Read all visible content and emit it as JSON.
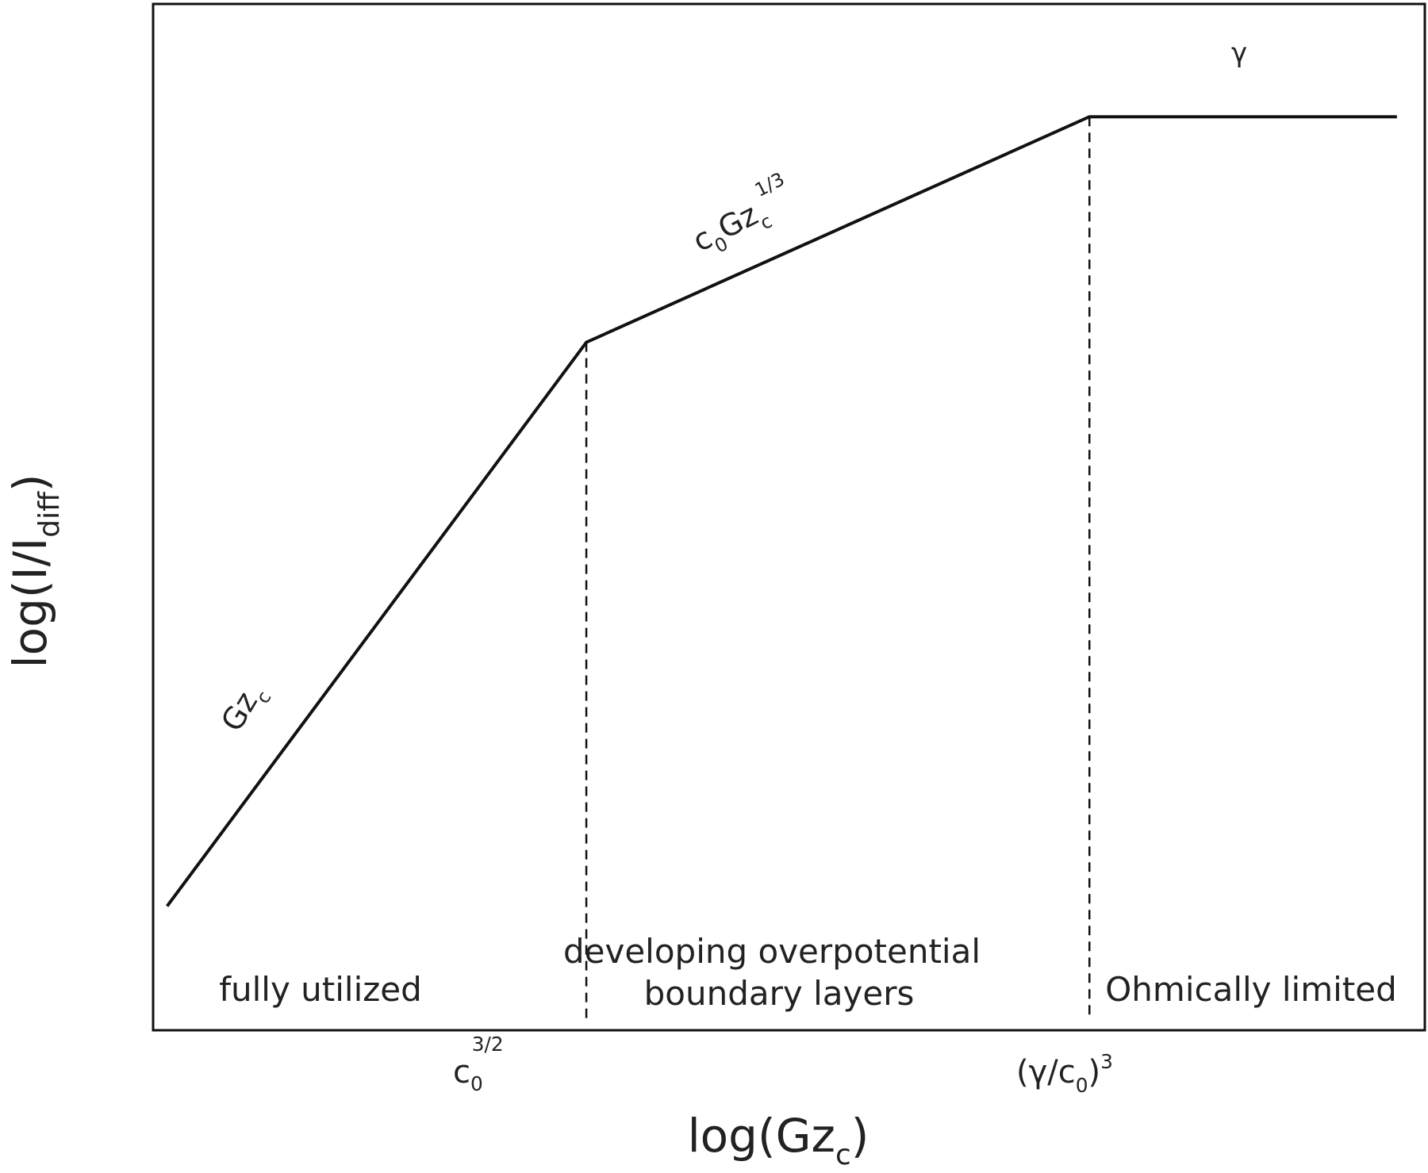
{
  "chart_data": {
    "type": "line",
    "x_scale": "log",
    "y_scale": "log",
    "xlabel": {
      "base": "log(Gz",
      "sub": "c",
      "close": ")"
    },
    "ylabel": {
      "base": "log(I/I",
      "sub": "diff",
      "close": ")"
    },
    "x_ticks": [
      {
        "base": "c",
        "sub": "0",
        "sup": "3/2"
      },
      {
        "base": "(γ/c",
        "sub": "0",
        "close": ")",
        "sup": "3"
      }
    ],
    "series": [
      {
        "x": [
          0,
          1.5,
          3.3,
          4.4
        ],
        "y": [
          0,
          1.5,
          2.1,
          2.1
        ],
        "segment_labels": [
          {
            "base": "Gz",
            "sub": "c"
          },
          {
            "base": "c",
            "sub": "0",
            "mid": "Gz",
            "sub2": "c",
            "sup": "1/3"
          },
          {
            "base": "γ"
          }
        ]
      }
    ],
    "region_boundaries": [
      1.5,
      3.3
    ],
    "regions": [
      {
        "lines": [
          "fully utilized"
        ]
      },
      {
        "lines": [
          "developing overpotential",
          "boundary layers"
        ]
      },
      {
        "lines": [
          "Ohmically limited"
        ]
      }
    ],
    "xlim": [
      -0.05,
      4.5
    ],
    "ylim": [
      -0.33,
      2.4
    ],
    "grid": false,
    "legend": "none",
    "colors": {
      "line": "#111111",
      "frame": "#111111",
      "text": "#222222"
    }
  }
}
